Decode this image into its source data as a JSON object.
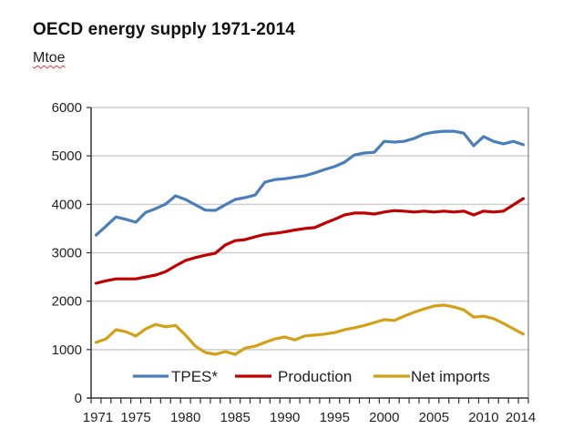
{
  "chart_data": {
    "type": "line",
    "title": "OECD energy supply 1971-2014",
    "subtitle": "Mtoe",
    "xlabel": "",
    "ylabel": "Mtoe",
    "ylim": [
      0,
      6000
    ],
    "yticks": [
      0,
      1000,
      2000,
      3000,
      4000,
      5000,
      6000
    ],
    "xticks": [
      "1971",
      "1975",
      "1980",
      "1985",
      "1990",
      "1995",
      "2000",
      "2005",
      "2010",
      "2014"
    ],
    "grid": true,
    "legend": "bottom-inside",
    "x": [
      1971,
      1972,
      1973,
      1974,
      1975,
      1976,
      1977,
      1978,
      1979,
      1980,
      1981,
      1982,
      1983,
      1984,
      1985,
      1986,
      1987,
      1988,
      1989,
      1990,
      1991,
      1992,
      1993,
      1994,
      1995,
      1996,
      1997,
      1998,
      1999,
      2000,
      2001,
      2002,
      2003,
      2004,
      2005,
      2006,
      2007,
      2008,
      2009,
      2010,
      2011,
      2012,
      2013,
      2014
    ],
    "series": [
      {
        "name": "TPES*",
        "color": "#4a7ebb",
        "values": [
          3365,
          3550,
          3740,
          3690,
          3630,
          3835,
          3910,
          4005,
          4175,
          4100,
          3990,
          3880,
          3875,
          3990,
          4100,
          4140,
          4190,
          4460,
          4510,
          4530,
          4560,
          4590,
          4650,
          4720,
          4780,
          4870,
          5020,
          5060,
          5075,
          5300,
          5285,
          5300,
          5360,
          5450,
          5490,
          5510,
          5510,
          5470,
          5210,
          5400,
          5300,
          5250,
          5300,
          5230
        ]
      },
      {
        "name": "Production",
        "color": "#c00000",
        "values": [
          2370,
          2420,
          2460,
          2460,
          2460,
          2500,
          2540,
          2610,
          2730,
          2840,
          2900,
          2950,
          2990,
          3160,
          3250,
          3270,
          3330,
          3380,
          3400,
          3430,
          3470,
          3500,
          3520,
          3610,
          3690,
          3780,
          3820,
          3820,
          3800,
          3840,
          3870,
          3860,
          3840,
          3860,
          3840,
          3860,
          3840,
          3860,
          3780,
          3860,
          3840,
          3860,
          3990,
          4120
        ]
      },
      {
        "name": "Net imports",
        "color": "#d4a017",
        "values": [
          1150,
          1220,
          1410,
          1370,
          1280,
          1430,
          1520,
          1470,
          1500,
          1300,
          1070,
          940,
          900,
          960,
          900,
          1030,
          1070,
          1150,
          1220,
          1260,
          1200,
          1280,
          1300,
          1320,
          1350,
          1410,
          1450,
          1500,
          1560,
          1620,
          1600,
          1690,
          1770,
          1840,
          1900,
          1920,
          1880,
          1820,
          1670,
          1690,
          1640,
          1540,
          1430,
          1320
        ]
      }
    ]
  }
}
